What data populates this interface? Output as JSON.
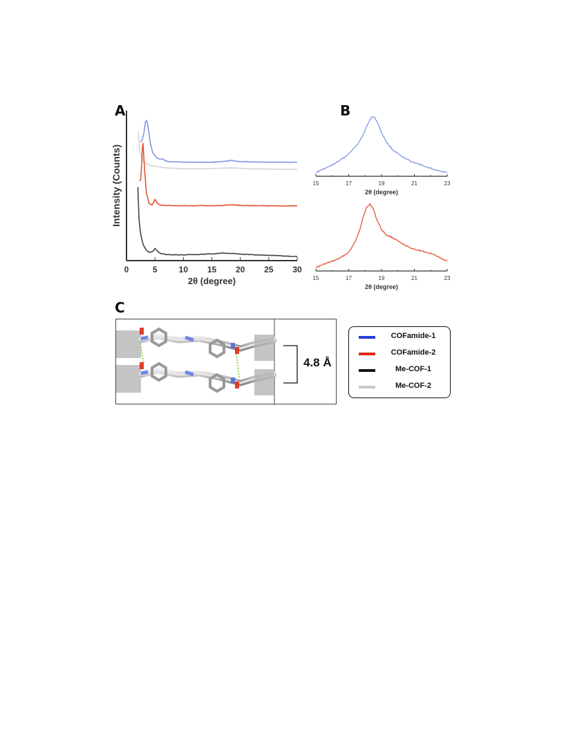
{
  "panels": {
    "a": "A",
    "b": "B",
    "c": "C"
  },
  "chart_data": [
    {
      "type": "line",
      "panel": "A",
      "xlabel": "2θ (degree)",
      "ylabel": "Intensity (Counts)",
      "xlim": [
        0,
        30
      ],
      "xticks": [
        0,
        5,
        10,
        15,
        20,
        25,
        30
      ],
      "stacked_offset_traces": true,
      "series": [
        {
          "name": "COFamide-1",
          "color": "#7f98e2",
          "x": [
            2.5,
            2.8,
            3.1,
            3.3,
            3.5,
            3.7,
            3.9,
            4.2,
            4.6,
            5.2,
            5.8,
            6.3,
            6.8,
            7.5,
            9,
            12,
            15,
            17,
            18,
            18.5,
            19,
            20,
            22,
            25,
            28,
            30
          ],
          "y": [
            0.79,
            0.81,
            0.86,
            0.92,
            0.935,
            0.91,
            0.86,
            0.78,
            0.72,
            0.69,
            0.675,
            0.68,
            0.665,
            0.66,
            0.658,
            0.656,
            0.656,
            0.66,
            0.665,
            0.668,
            0.664,
            0.66,
            0.658,
            0.657,
            0.656,
            0.656
          ]
        },
        {
          "name": "Me-COF-2",
          "color": "#d4d4d4",
          "x": [
            2.1,
            2.3,
            2.6,
            3.0,
            3.5,
            4.2,
            5.0,
            6.5,
            8,
            10,
            12,
            15,
            17,
            18.5,
            20,
            22,
            25,
            28,
            30
          ],
          "y": [
            0.86,
            0.74,
            0.69,
            0.665,
            0.645,
            0.635,
            0.628,
            0.62,
            0.616,
            0.612,
            0.612,
            0.614,
            0.617,
            0.618,
            0.615,
            0.612,
            0.61,
            0.609,
            0.608
          ]
        },
        {
          "name": "COFamide-2",
          "color": "#e05535",
          "x": [
            2.3,
            2.5,
            2.7,
            2.8,
            2.9,
            3.0,
            3.2,
            3.5,
            4.0,
            4.5,
            4.8,
            5.0,
            5.2,
            5.5,
            6.0,
            7.0,
            9,
            12,
            15,
            17,
            18.5,
            20,
            23,
            26,
            30
          ],
          "y": [
            0.53,
            0.54,
            0.66,
            0.76,
            0.78,
            0.72,
            0.6,
            0.45,
            0.38,
            0.37,
            0.39,
            0.41,
            0.395,
            0.378,
            0.37,
            0.368,
            0.366,
            0.366,
            0.366,
            0.368,
            0.372,
            0.368,
            0.366,
            0.365,
            0.365
          ]
        },
        {
          "name": "Me-COF-1",
          "color": "#444444",
          "x": [
            2.0,
            2.1,
            2.2,
            2.4,
            2.7,
            3.0,
            3.5,
            4.0,
            4.6,
            5.0,
            5.4,
            6.0,
            7.0,
            9,
            12,
            15,
            17,
            18.5,
            20,
            23,
            26,
            28,
            30
          ],
          "y": [
            0.49,
            0.38,
            0.28,
            0.2,
            0.14,
            0.1,
            0.07,
            0.055,
            0.06,
            0.08,
            0.065,
            0.048,
            0.04,
            0.038,
            0.04,
            0.045,
            0.05,
            0.048,
            0.044,
            0.038,
            0.034,
            0.03,
            0.028
          ]
        }
      ]
    },
    {
      "type": "line",
      "panel": "B-top",
      "xlabel": "2θ (degree)",
      "xlim": [
        15,
        23
      ],
      "xticks": [
        15,
        17,
        19,
        21,
        23
      ],
      "series": [
        {
          "name": "COFamide-1",
          "color": "#7f98e2",
          "x": [
            15,
            15.5,
            16,
            16.5,
            17,
            17.5,
            17.9,
            18.2,
            18.4,
            18.6,
            18.8,
            19.0,
            19.3,
            19.7,
            20.2,
            20.8,
            21.5,
            22.2,
            23
          ],
          "y": [
            0.06,
            0.12,
            0.18,
            0.26,
            0.36,
            0.5,
            0.68,
            0.86,
            0.96,
            0.94,
            0.84,
            0.7,
            0.55,
            0.42,
            0.32,
            0.24,
            0.17,
            0.11,
            0.06
          ]
        }
      ]
    },
    {
      "type": "line",
      "panel": "B-bottom",
      "xlabel": "2θ (degree)",
      "xlim": [
        15,
        23
      ],
      "xticks": [
        15,
        17,
        19,
        21,
        23
      ],
      "series": [
        {
          "name": "COFamide-2",
          "color": "#e05535",
          "x": [
            15,
            15.5,
            16,
            16.5,
            17,
            17.4,
            17.7,
            17.9,
            18.1,
            18.3,
            18.5,
            18.7,
            19.0,
            19.3,
            19.7,
            20.2,
            20.7,
            21.2,
            21.7,
            22.2,
            22.6,
            23
          ],
          "y": [
            0.05,
            0.1,
            0.14,
            0.19,
            0.27,
            0.42,
            0.62,
            0.8,
            0.92,
            0.97,
            0.9,
            0.75,
            0.6,
            0.52,
            0.48,
            0.4,
            0.34,
            0.3,
            0.27,
            0.24,
            0.19,
            0.14
          ]
        }
      ]
    }
  ],
  "panel_c": {
    "spacing_label": "4.8 Å",
    "legend": [
      {
        "label": "COFamide-1",
        "color": "#2840d8"
      },
      {
        "label": "COFamide-2",
        "color": "#e02a1a"
      },
      {
        "label": "Me-COF-1",
        "color": "#111111"
      },
      {
        "label": "Me-COF-2",
        "color": "#c8c8c8"
      }
    ]
  }
}
